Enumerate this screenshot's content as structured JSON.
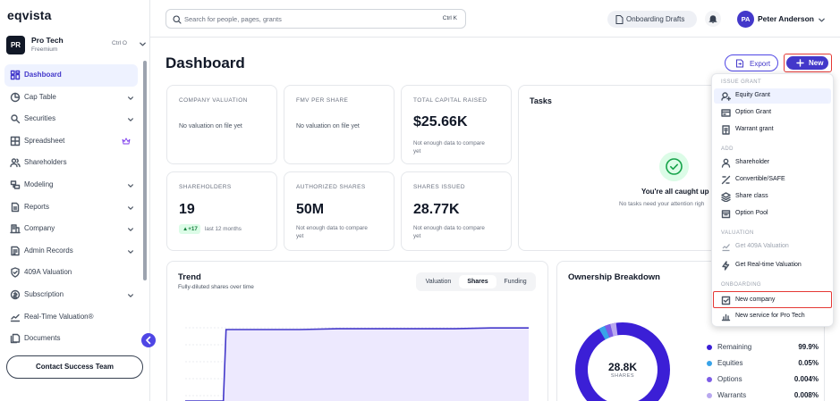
{
  "brand": {
    "logo_text": "eqvista"
  },
  "org": {
    "initials": "PR",
    "name": "Pro Tech",
    "plan": "Freemium",
    "shortcut": "Ctrl O"
  },
  "sidebar": {
    "items": [
      {
        "label": "Dashboard",
        "icon": "dashboard-icon",
        "active": true,
        "chevron": false
      },
      {
        "label": "Cap Table",
        "icon": "pie-chart-icon",
        "chevron": true
      },
      {
        "label": "Securities",
        "icon": "securities-icon",
        "chevron": true
      },
      {
        "label": "Spreadsheet",
        "icon": "grid-icon",
        "chevron": false,
        "badge": "crown-icon"
      },
      {
        "label": "Shareholders",
        "icon": "users-icon",
        "chevron": false
      },
      {
        "label": "Modeling",
        "icon": "modeling-icon",
        "chevron": true
      },
      {
        "label": "Reports",
        "icon": "reports-icon",
        "chevron": true
      },
      {
        "label": "Company",
        "icon": "company-icon",
        "chevron": true
      },
      {
        "label": "Admin Records",
        "icon": "records-icon",
        "chevron": true
      },
      {
        "label": "409A Valuation",
        "icon": "shield-icon",
        "chevron": false
      },
      {
        "label": "Subscription",
        "icon": "subscription-icon",
        "chevron": true
      },
      {
        "label": "Real-Time Valuation®",
        "icon": "trend-icon",
        "chevron": false
      },
      {
        "label": "Documents",
        "icon": "documents-icon",
        "chevron": false
      }
    ],
    "contact_label": "Contact Success Team"
  },
  "header": {
    "search_placeholder": "Search for people, pages, grants",
    "search_shortcut": "Ctrl K",
    "drafts_label": "Onboarding Drafts",
    "user_initials": "PA",
    "user_name": "Peter Anderson"
  },
  "main": {
    "title": "Dashboard",
    "export_label": "Export",
    "new_label": "New"
  },
  "cards": {
    "company_valuation": {
      "label": "COMPANY VALUATION",
      "text": "No valuation on file yet"
    },
    "fmv_per_share": {
      "label": "FMV PER SHARE",
      "text": "No valuation on file yet"
    },
    "total_capital": {
      "label": "TOTAL CAPITAL RAISED",
      "value": "$25.66K",
      "note_1": "Not enough data to compare",
      "note_2": "yet"
    },
    "shareholders": {
      "label": "SHAREHOLDERS",
      "value": "19",
      "delta": "+17",
      "period": "last 12 months"
    },
    "authorized": {
      "label": "AUTHORIZED SHARES",
      "value": "50M",
      "note_1": "Not enough data to compare",
      "note_2": "yet"
    },
    "issued": {
      "label": "SHARES ISSUED",
      "value": "28.77K",
      "note_1": "Not enough data to compare",
      "note_2": "yet"
    }
  },
  "tasks": {
    "title": "Tasks",
    "empty_title": "You're all caught up",
    "empty_text": "No tasks need your attention righ"
  },
  "trend": {
    "title": "Trend",
    "subtitle": "Fully-diluted shares over time",
    "tabs": [
      "Valuation",
      "Shares",
      "Funding"
    ],
    "active_tab": "Shares"
  },
  "chart_data": {
    "type": "area",
    "title": "Trend",
    "subtitle": "Fully-diluted shares over time",
    "x": [
      0,
      1,
      2,
      3,
      4,
      5,
      6,
      7,
      8,
      9
    ],
    "values": [
      0,
      0,
      0.92,
      0.92,
      0.93,
      0.93,
      0.93,
      0.93,
      0.94,
      0.94
    ],
    "value_unit": "fraction of visible y-range",
    "grid": true,
    "color": "#4338ca"
  },
  "ownership": {
    "title": "Ownership Breakdown",
    "total": "28.8K",
    "total_label": "SHARES",
    "legend": [
      {
        "name": "Remaining",
        "value": "99.9%",
        "color": "#3b1fd6"
      },
      {
        "name": "Equities",
        "value": "0.05%",
        "color": "#38a3e8"
      },
      {
        "name": "Options",
        "value": "0.004%",
        "color": "#7c5ce6"
      },
      {
        "name": "Warrants",
        "value": "0.008%",
        "color": "#b9a8ef"
      }
    ]
  },
  "menu": {
    "sections": [
      {
        "title": "ISSUE GRANT",
        "items": [
          {
            "label": "Equity Grant",
            "icon": "equity-grant-icon",
            "highlight": true
          },
          {
            "label": "Option Grant",
            "icon": "option-grant-icon"
          },
          {
            "label": "Warrant grant",
            "icon": "warrant-grant-icon"
          }
        ]
      },
      {
        "title": "ADD",
        "items": [
          {
            "label": "Shareholder",
            "icon": "shareholder-icon"
          },
          {
            "label": "Convertible/SAFE",
            "icon": "convertible-icon"
          },
          {
            "label": "Share class",
            "icon": "share-class-icon"
          },
          {
            "label": "Option Pool",
            "icon": "option-pool-icon"
          }
        ]
      },
      {
        "title": "VALUATION",
        "items": [
          {
            "label": "Get 409A Valuation",
            "icon": "valuation-icon",
            "disabled": true
          },
          {
            "label": "Get Real-time Valuation",
            "icon": "realtime-valuation-icon"
          }
        ]
      },
      {
        "title": "ONBOARDING",
        "items": [
          {
            "label": "New company",
            "icon": "new-company-icon",
            "boxed": true
          },
          {
            "label": "New service for Pro Tech",
            "icon": "new-service-icon"
          }
        ]
      }
    ]
  }
}
